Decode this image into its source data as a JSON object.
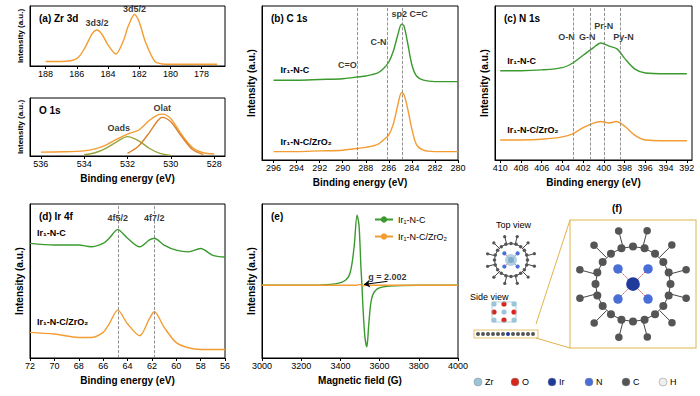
{
  "chart_data": [
    {
      "type": "line",
      "title": "(a) Zr 3d",
      "y_label": "Intensity (a.u.)",
      "xlim": [
        189,
        176.5
      ],
      "xticks": [
        188,
        186,
        184,
        182,
        180,
        178
      ],
      "ylim": [
        0,
        105
      ],
      "tick_labels": "x",
      "grid": false,
      "series": [
        {
          "color": "#f39c32",
          "x": [
            188,
            187,
            186,
            185.5,
            185,
            184.7,
            184.4,
            184,
            183.5,
            183,
            182.7,
            182.3,
            182,
            181.6,
            181,
            180.5,
            180,
            179,
            178,
            177
          ],
          "values": [
            8,
            8,
            13,
            31,
            57,
            63,
            56,
            37,
            21,
            45,
            70,
            90,
            77,
            42,
            8,
            3.5,
            3,
            3,
            3,
            3
          ]
        }
      ],
      "annotations": [
        {
          "text": "3d3/2",
          "x": 184.7,
          "y": 75
        },
        {
          "text": "3d5/2",
          "x": 182.3,
          "y": 100
        }
      ]
    },
    {
      "type": "line",
      "title": "O 1s",
      "x_label": "Binding energy (eV)",
      "y_label": "Intensity (a.u.)",
      "xlim": [
        536.5,
        527.5
      ],
      "xticks": [
        536,
        534,
        532,
        530,
        528
      ],
      "ylim": [
        0,
        90
      ],
      "tick_labels": "x",
      "grid": false,
      "series": [
        {
          "color": "#f39c32",
          "x": [
            536,
            535,
            534,
            533.5,
            533,
            532.5,
            532,
            531.5,
            531,
            530.6,
            530.4,
            530,
            529.5,
            529,
            528.5,
            528
          ],
          "values": [
            6,
            6.5,
            8,
            11,
            17,
            26,
            34,
            40,
            55,
            64,
            65,
            58,
            33,
            13,
            5,
            3
          ]
        },
        {
          "color": "#9aa33a",
          "x": [
            534,
            533.5,
            533,
            532.5,
            532,
            531.5,
            531,
            530.5,
            530
          ],
          "values": [
            2,
            5,
            12,
            22,
            30,
            24,
            12,
            4,
            1
          ]
        },
        {
          "color": "#d9822b",
          "x": [
            532,
            531.5,
            531,
            530.6,
            530.4,
            530,
            529.5,
            529,
            528.5
          ],
          "values": [
            4,
            15,
            36,
            55,
            60,
            53,
            30,
            10,
            2
          ]
        }
      ],
      "annotations": [
        {
          "text": "Oads",
          "x": 532.4,
          "y": 44
        },
        {
          "text": "Olat",
          "x": 530.4,
          "y": 74
        }
      ]
    },
    {
      "type": "line",
      "title": "(b) C 1s",
      "x_label": "Binding energy (eV)",
      "y_label": "Intensity (a.u.)",
      "xlim": [
        297,
        280
      ],
      "xticks": [
        296,
        294,
        292,
        290,
        288,
        286,
        284,
        282,
        280
      ],
      "ylim": [
        0,
        110
      ],
      "tick_labels": "x",
      "grid": false,
      "series": [
        {
          "name": "Ir₁-N-C",
          "color": "#3a9a2e",
          "x": [
            296,
            294,
            292,
            290,
            289,
            288.5,
            288,
            287,
            286.5,
            286,
            285.6,
            285.2,
            284.9,
            284.7,
            284.4,
            284,
            283.6,
            283,
            282,
            280
          ],
          "values": [
            57,
            57,
            57.5,
            58,
            59,
            59.5,
            60,
            62,
            65,
            70,
            78,
            90,
            97,
            96,
            85,
            68,
            60,
            57,
            56,
            56
          ]
        },
        {
          "name": "Ir₁-N-C/ZrO₂",
          "color": "#f39c32",
          "x": [
            296,
            294,
            292,
            290,
            289,
            288.5,
            288,
            287,
            286.5,
            286,
            285.6,
            285.2,
            284.9,
            284.7,
            284.4,
            284,
            283.6,
            283,
            282,
            280
          ],
          "values": [
            6,
            6,
            6.5,
            7,
            8,
            8.5,
            9,
            11,
            14,
            18,
            26,
            40,
            48,
            47,
            38,
            22,
            11,
            7,
            6,
            6
          ]
        }
      ],
      "vlines": [
        288.7,
        286.1,
        284.8
      ],
      "annotations": [
        {
          "text": "C=O",
          "x": 289.6,
          "y": 68
        },
        {
          "text": "C-N",
          "x": 286.9,
          "y": 84
        },
        {
          "text": "sp2 C=C",
          "x": 284.2,
          "y": 104
        }
      ]
    },
    {
      "type": "line",
      "title": "(c) N 1s",
      "x_label": "Binding energy (eV)",
      "y_label": "Intensity (a.u.)",
      "xlim": [
        410.5,
        391.5
      ],
      "xticks": [
        410,
        408,
        406,
        404,
        402,
        400,
        398,
        396,
        394,
        392
      ],
      "ylim": [
        0,
        100
      ],
      "tick_labels": "x",
      "grid": false,
      "series": [
        {
          "name": "Ir₁-N-C",
          "color": "#3a9a2e",
          "x": [
            410,
            408,
            406,
            404,
            403,
            402,
            401,
            400.3,
            399.5,
            398.7,
            398,
            397,
            396,
            394,
            392
          ],
          "values": [
            58,
            58,
            58.5,
            60,
            63,
            68,
            73,
            76,
            74,
            72,
            66,
            59,
            56.5,
            56,
            56
          ]
        },
        {
          "name": "Ir₁-N-C/ZrO₂",
          "color": "#f39c32",
          "x": [
            410,
            408,
            406,
            404,
            403,
            402,
            401,
            400.3,
            399.5,
            398.8,
            398,
            397,
            396,
            394,
            392
          ],
          "values": [
            13,
            13,
            13.5,
            15,
            17,
            21,
            24,
            25,
            24,
            25,
            22,
            16,
            13,
            12.5,
            12.5
          ]
        }
      ],
      "vlines": [
        403,
        401.3,
        400,
        398.4
      ],
      "annotations": [
        {
          "text": "O-N",
          "x": 403.6,
          "y": 80
        },
        {
          "text": "G-N",
          "x": 401.6,
          "y": 80
        },
        {
          "text": "Pr-N",
          "x": 400,
          "y": 87
        },
        {
          "text": "Py-N",
          "x": 398.1,
          "y": 80
        }
      ]
    },
    {
      "type": "line",
      "title": "(d) Ir 4f",
      "x_label": "Binding energy (eV)",
      "y_label": "Intensity (a.u.)",
      "xlim": [
        72,
        56
      ],
      "xticks": [
        72,
        70,
        68,
        66,
        64,
        62,
        60,
        58,
        56
      ],
      "ylim": [
        0,
        90
      ],
      "tick_labels": "x",
      "grid": false,
      "series": [
        {
          "name": "Ir₁-N-C",
          "color": "#3a9a2e",
          "x": [
            72,
            70,
            68,
            67,
            66,
            65.5,
            64.8,
            64,
            63,
            62.2,
            61.8,
            61,
            60,
            59,
            58,
            57,
            56
          ],
          "values": [
            67,
            66,
            66,
            65,
            67,
            70,
            75,
            70,
            65,
            69,
            70,
            66,
            63,
            62,
            64,
            60,
            59
          ]
        },
        {
          "name": "Ir₁-N-C/ZrO₂",
          "color": "#f39c32",
          "x": [
            72,
            70,
            68,
            67,
            66,
            65.5,
            64.8,
            64,
            63,
            62.2,
            61.8,
            61,
            60,
            59,
            58,
            56
          ],
          "values": [
            15,
            14,
            12,
            12,
            15,
            20,
            28,
            20,
            13,
            23,
            27,
            18,
            9,
            6,
            5,
            5
          ]
        }
      ],
      "vlines": [
        64.8,
        61.8
      ],
      "annotations": [
        {
          "text": "4f5/2",
          "x": 64.8,
          "y": 82
        },
        {
          "text": "4f7/2",
          "x": 61.8,
          "y": 82
        }
      ]
    },
    {
      "type": "line",
      "title": "(e)",
      "x_label": "Magnetic field (G)",
      "y_label": "Intensity (a.u.)",
      "xlim": [
        3000,
        4000
      ],
      "xticks": [
        3000,
        3200,
        3400,
        3600,
        3800,
        4000
      ],
      "ylim": [
        -0.85,
        0.95
      ],
      "tick_labels": "x",
      "grid": false,
      "legend": "upper right",
      "series": [
        {
          "name": "Ir₁-N-C",
          "color": "#3a9a2e",
          "x": [
            3000,
            3200,
            3350,
            3420,
            3450,
            3470,
            3485,
            3495,
            3505,
            3510,
            3515,
            3525,
            3535,
            3545,
            3560,
            3590,
            3650,
            3800,
            4000
          ],
          "values": [
            0,
            0,
            0.01,
            0.05,
            0.15,
            0.45,
            0.82,
            0.7,
            0.2,
            0,
            -0.25,
            -0.6,
            -0.72,
            -0.45,
            -0.15,
            -0.04,
            -0.01,
            0,
            0
          ]
        },
        {
          "name": "Ir₁-N-C/ZrO₂",
          "color": "#f39c32",
          "x": [
            3000,
            3480,
            3500,
            3515,
            3530,
            4000
          ],
          "values": [
            0,
            0,
            0.01,
            -0.01,
            0,
            0
          ]
        }
      ],
      "annotations": [
        {
          "text": "g = 2.002",
          "x": 3640,
          "y": 0.1,
          "arrow_to": [
            3520,
            0.01
          ]
        }
      ]
    }
  ],
  "diagram": {
    "label": "(f)",
    "top_view": "Top view",
    "side_view": "Side view",
    "atoms": [
      {
        "symbol": "Zr",
        "color": "#9cc6d8"
      },
      {
        "symbol": "O",
        "color": "#d9261c"
      },
      {
        "symbol": "Ir",
        "color": "#1f3a9a"
      },
      {
        "symbol": "N",
        "color": "#4a6ed8"
      },
      {
        "symbol": "C",
        "color": "#555555"
      },
      {
        "symbol": "H",
        "color": "#eeeeee"
      }
    ]
  }
}
